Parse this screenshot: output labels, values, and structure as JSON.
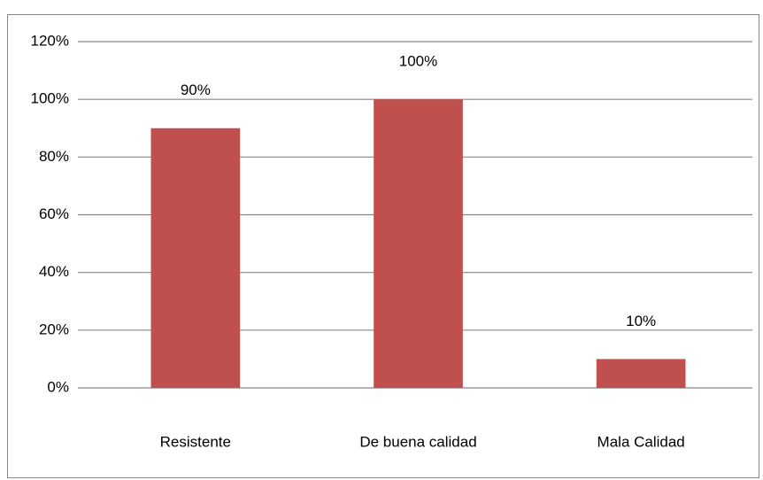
{
  "chart_data": {
    "type": "bar",
    "categories": [
      "Resistente",
      "De buena calidad",
      "Mala Calidad"
    ],
    "values": [
      90,
      100,
      10
    ],
    "value_labels": [
      "90%",
      "100%",
      "10%"
    ],
    "color": "#c0504d",
    "ylim": [
      0,
      120
    ],
    "yticks": [
      {
        "value": 0,
        "label": "0%"
      },
      {
        "value": 20,
        "label": "20%"
      },
      {
        "value": 40,
        "label": "40%"
      },
      {
        "value": 60,
        "label": "60%"
      },
      {
        "value": 80,
        "label": "80%"
      },
      {
        "value": 100,
        "label": "100%"
      },
      {
        "value": 120,
        "label": "120%"
      }
    ],
    "grid": true
  }
}
